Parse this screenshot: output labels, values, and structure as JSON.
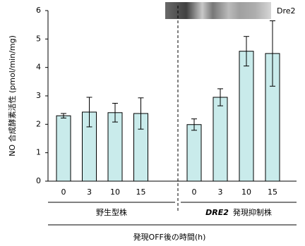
{
  "chart_data": {
    "type": "bar",
    "y_label": "NO 合成酵素活性 (pmol/min/mg)",
    "x_label": "発現OFF後の時間(h)",
    "categories": [
      "0",
      "3",
      "10",
      "15",
      "0",
      "3",
      "10",
      "15"
    ],
    "values": [
      2.3,
      2.43,
      2.41,
      2.38,
      1.99,
      2.95,
      4.57,
      4.49
    ],
    "errors": [
      0.08,
      0.52,
      0.33,
      0.55,
      0.2,
      0.3,
      0.52,
      1.15
    ],
    "color": "#c9ebeb",
    "groups": [
      {
        "label": "野生型株"
      },
      {
        "label_emphasis": "DRE2",
        "label": "発現抑制株"
      }
    ],
    "blot_label": "Dre2",
    "ylim": [
      0,
      6
    ],
    "yticks": [
      0,
      1,
      2,
      3,
      4,
      5,
      6
    ]
  }
}
